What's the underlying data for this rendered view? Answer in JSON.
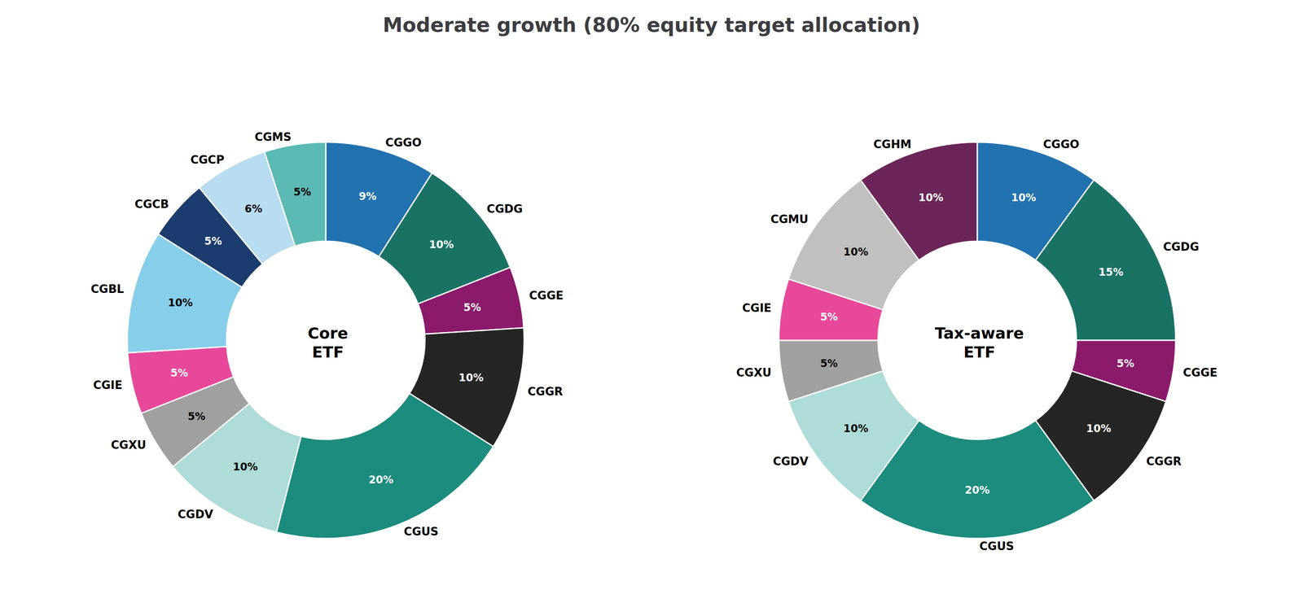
{
  "chart_data": {
    "type": "pie",
    "title": "Moderate growth (80% equity target allocation)",
    "data_labels": true,
    "series": [
      {
        "name": "Core\nETF",
        "categories": [
          "CGGO",
          "CGDG",
          "CGGE",
          "CGGR",
          "CGUS",
          "CGDV",
          "CGXU",
          "CGIE",
          "CGBL",
          "CGCB",
          "CGCP",
          "CGMS"
        ],
        "values": [
          9,
          10,
          5,
          10,
          20,
          10,
          5,
          5,
          10,
          5,
          6,
          5
        ],
        "value_labels": [
          "9%",
          "10%",
          "5%",
          "10%",
          "20%",
          "10%",
          "5%",
          "5%",
          "10%",
          "5%",
          "6%",
          "5%"
        ],
        "colors": [
          "#2272B0",
          "#1A7265",
          "#8B1A6B",
          "#252525",
          "#1B8C7E",
          "#AEDCD8",
          "#A0A0A0",
          "#E8489A",
          "#87CEEB",
          "#1C3B6E",
          "#B8DCF0",
          "#5BBAB4"
        ]
      },
      {
        "name": "Tax-aware\nETF",
        "categories": [
          "CGGO",
          "CGDG",
          "CGGE",
          "CGGR",
          "CGUS",
          "CGDV",
          "CGXU",
          "CGIE",
          "CGMU",
          "CGHM"
        ],
        "values": [
          10,
          15,
          5,
          10,
          20,
          10,
          5,
          5,
          10,
          10
        ],
        "value_labels": [
          "10%",
          "15%",
          "5%",
          "10%",
          "20%",
          "10%",
          "5%",
          "5%",
          "10%",
          "10%"
        ],
        "colors": [
          "#2272B0",
          "#1A7265",
          "#8B1A6B",
          "#252525",
          "#1B8C7E",
          "#AEDCD8",
          "#A0A0A0",
          "#E8489A",
          "#C0C0C0",
          "#6B2558"
        ]
      }
    ]
  }
}
